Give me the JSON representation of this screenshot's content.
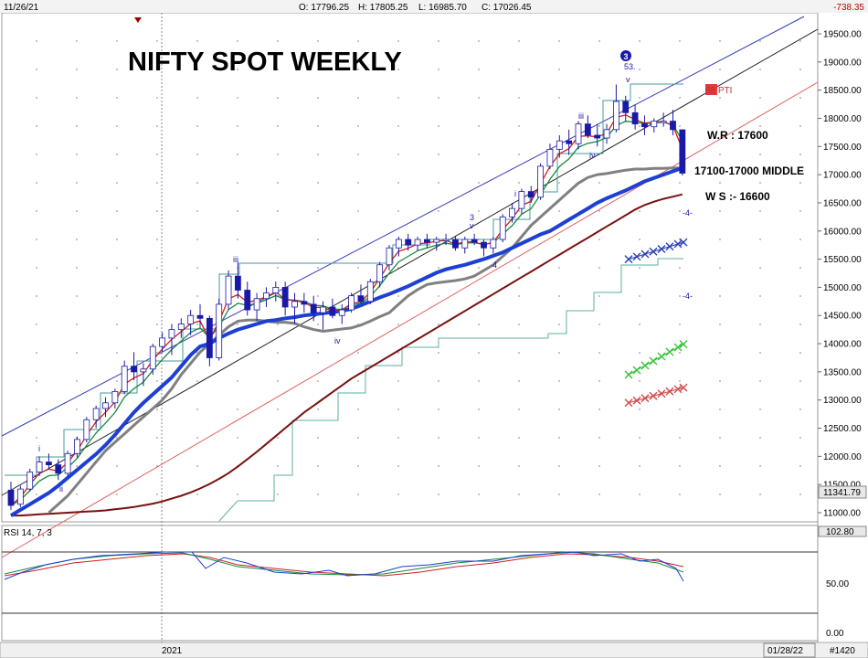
{
  "header": {
    "date": "11/26/21",
    "open": "O: 17796.25",
    "high": "H: 17805.25",
    "low": "L: 16985.70",
    "close": "C: 17026.45",
    "change": "-738.35"
  },
  "title": "NIFTY SPOT WEEKLY",
  "annotations": {
    "wr": "W.R : 17600",
    "middle": "17100-17000 MIDDLE",
    "ws": "W S :- 16600",
    "pti": "88 PTI",
    "wave_53": "53."
  },
  "wave_labels": {
    "i": "i",
    "ii": "ii",
    "iii": "iii",
    "iv": "iv",
    "v": "v",
    "three": "3",
    "four": "4",
    "minus4": "-4-",
    "circle3": "3"
  },
  "price_axis": {
    "ticks": [
      "19500.00",
      "19000.00",
      "18500.00",
      "18000.00",
      "17500.00",
      "17000.00",
      "16500.00",
      "16000.00",
      "15500.00",
      "15000.00",
      "14500.00",
      "14000.00",
      "13500.00",
      "13000.00",
      "12500.00",
      "12000.00",
      "11500.00",
      "11000.00"
    ],
    "last_price": "11341.79"
  },
  "rsi": {
    "label": "RSI 14, 7, 3",
    "ticks": [
      "102.80",
      "50.00",
      "0.00"
    ]
  },
  "time_axis": {
    "labels": [
      "2021",
      "01/28/22",
      "#1420"
    ]
  },
  "colors": {
    "up_candle": "#ffffff",
    "down_candle": "#1a1aa8",
    "ema_fast": "#d11e1e",
    "ema_mid": "#168a3c",
    "ma_blue": "#1d3fd4",
    "ma_gray": "#808080",
    "ma_maroon": "#7a1010"
  },
  "chart_data": {
    "type": "candlestick",
    "title": "NIFTY SPOT WEEKLY",
    "ylim": [
      10900,
      19700
    ],
    "ticks": [
      19500,
      19000,
      18500,
      18000,
      17500,
      17000,
      16500,
      16000,
      15500,
      15000,
      14500,
      14000,
      13500,
      13000,
      12500,
      12000,
      11500,
      11000
    ],
    "last_bar": {
      "date": "11/26/21",
      "open": 17796.25,
      "high": 17805.25,
      "low": 16985.7,
      "close": 17026.45,
      "change": -738.35
    },
    "candles": [
      {
        "o": 11400,
        "h": 11550,
        "l": 11050,
        "c": 11130
      },
      {
        "o": 11150,
        "h": 11480,
        "l": 11100,
        "c": 11420
      },
      {
        "o": 11420,
        "h": 11780,
        "l": 11380,
        "c": 11720
      },
      {
        "o": 11720,
        "h": 12000,
        "l": 11650,
        "c": 11900
      },
      {
        "o": 11900,
        "h": 12050,
        "l": 11780,
        "c": 11850
      },
      {
        "o": 11850,
        "h": 11950,
        "l": 11580,
        "c": 11700
      },
      {
        "o": 11700,
        "h": 12100,
        "l": 11650,
        "c": 12050
      },
      {
        "o": 12050,
        "h": 12350,
        "l": 11980,
        "c": 12300
      },
      {
        "o": 12300,
        "h": 12700,
        "l": 12250,
        "c": 12650
      },
      {
        "o": 12650,
        "h": 12900,
        "l": 12500,
        "c": 12850
      },
      {
        "o": 12850,
        "h": 13050,
        "l": 12700,
        "c": 12950
      },
      {
        "o": 12950,
        "h": 13200,
        "l": 12850,
        "c": 13150
      },
      {
        "o": 13150,
        "h": 13700,
        "l": 13100,
        "c": 13600
      },
      {
        "o": 13600,
        "h": 13850,
        "l": 13350,
        "c": 13500
      },
      {
        "o": 13500,
        "h": 13650,
        "l": 13250,
        "c": 13550
      },
      {
        "o": 13550,
        "h": 14000,
        "l": 13450,
        "c": 13950
      },
      {
        "o": 13950,
        "h": 14200,
        "l": 13850,
        "c": 14100
      },
      {
        "o": 14100,
        "h": 14350,
        "l": 13800,
        "c": 14250
      },
      {
        "o": 14250,
        "h": 14450,
        "l": 14100,
        "c": 14350
      },
      {
        "o": 14350,
        "h": 14600,
        "l": 14150,
        "c": 14500
      },
      {
        "o": 14500,
        "h": 14700,
        "l": 14300,
        "c": 14450
      },
      {
        "o": 14450,
        "h": 14500,
        "l": 13600,
        "c": 13750
      },
      {
        "o": 13750,
        "h": 14800,
        "l": 13700,
        "c": 14700
      },
      {
        "o": 14700,
        "h": 15300,
        "l": 14600,
        "c": 15200
      },
      {
        "o": 15200,
        "h": 15450,
        "l": 14800,
        "c": 14950
      },
      {
        "o": 14950,
        "h": 15100,
        "l": 14500,
        "c": 14600
      },
      {
        "o": 14600,
        "h": 14900,
        "l": 14400,
        "c": 14800
      },
      {
        "o": 14800,
        "h": 15000,
        "l": 14650,
        "c": 14900
      },
      {
        "o": 14900,
        "h": 15100,
        "l": 14750,
        "c": 15000
      },
      {
        "o": 15000,
        "h": 15100,
        "l": 14500,
        "c": 14650
      },
      {
        "o": 14650,
        "h": 14900,
        "l": 14350,
        "c": 14750
      },
      {
        "o": 14750,
        "h": 14900,
        "l": 14550,
        "c": 14700
      },
      {
        "o": 14700,
        "h": 14850,
        "l": 14400,
        "c": 14550
      },
      {
        "o": 14550,
        "h": 14750,
        "l": 14250,
        "c": 14650
      },
      {
        "o": 14650,
        "h": 14800,
        "l": 14450,
        "c": 14500
      },
      {
        "o": 14500,
        "h": 14700,
        "l": 14350,
        "c": 14600
      },
      {
        "o": 14600,
        "h": 14900,
        "l": 14550,
        "c": 14850
      },
      {
        "o": 14850,
        "h": 15050,
        "l": 14700,
        "c": 14750
      },
      {
        "o": 14750,
        "h": 15150,
        "l": 14700,
        "c": 15100
      },
      {
        "o": 15100,
        "h": 15450,
        "l": 15000,
        "c": 15400
      },
      {
        "o": 15400,
        "h": 15750,
        "l": 15300,
        "c": 15700
      },
      {
        "o": 15700,
        "h": 15900,
        "l": 15550,
        "c": 15850
      },
      {
        "o": 15850,
        "h": 15950,
        "l": 15650,
        "c": 15750
      },
      {
        "o": 15750,
        "h": 15900,
        "l": 15650,
        "c": 15850
      },
      {
        "o": 15850,
        "h": 15950,
        "l": 15700,
        "c": 15800
      },
      {
        "o": 15800,
        "h": 15900,
        "l": 15650,
        "c": 15850
      },
      {
        "o": 15850,
        "h": 15950,
        "l": 15750,
        "c": 15850
      },
      {
        "o": 15850,
        "h": 15900,
        "l": 15650,
        "c": 15700
      },
      {
        "o": 15700,
        "h": 15900,
        "l": 15600,
        "c": 15850
      },
      {
        "o": 15850,
        "h": 15950,
        "l": 15750,
        "c": 15800
      },
      {
        "o": 15800,
        "h": 15850,
        "l": 15550,
        "c": 15700
      },
      {
        "o": 15700,
        "h": 15900,
        "l": 15600,
        "c": 15850
      },
      {
        "o": 15850,
        "h": 16300,
        "l": 15800,
        "c": 16250
      },
      {
        "o": 16250,
        "h": 16500,
        "l": 16150,
        "c": 16400
      },
      {
        "o": 16400,
        "h": 16750,
        "l": 16300,
        "c": 16700
      },
      {
        "o": 16700,
        "h": 16800,
        "l": 16500,
        "c": 16600
      },
      {
        "o": 16600,
        "h": 17200,
        "l": 16550,
        "c": 17150
      },
      {
        "o": 17150,
        "h": 17550,
        "l": 17100,
        "c": 17450
      },
      {
        "o": 17450,
        "h": 17700,
        "l": 17300,
        "c": 17600
      },
      {
        "o": 17600,
        "h": 17800,
        "l": 17350,
        "c": 17550
      },
      {
        "o": 17550,
        "h": 17950,
        "l": 17450,
        "c": 17900
      },
      {
        "o": 17900,
        "h": 18050,
        "l": 17650,
        "c": 17700
      },
      {
        "o": 17700,
        "h": 17900,
        "l": 17500,
        "c": 17650
      },
      {
        "o": 17650,
        "h": 17900,
        "l": 17550,
        "c": 17800
      },
      {
        "o": 17800,
        "h": 18600,
        "l": 17750,
        "c": 18300
      },
      {
        "o": 18300,
        "h": 18400,
        "l": 17950,
        "c": 18100
      },
      {
        "o": 18100,
        "h": 18250,
        "l": 17800,
        "c": 17900
      },
      {
        "o": 17900,
        "h": 18050,
        "l": 17700,
        "c": 17850
      },
      {
        "o": 17850,
        "h": 18000,
        "l": 17750,
        "c": 17950
      },
      {
        "o": 17950,
        "h": 18100,
        "l": 17850,
        "c": 17950
      },
      {
        "o": 17950,
        "h": 18150,
        "l": 17700,
        "c": 17800
      },
      {
        "o": 17796.25,
        "h": 17805.25,
        "l": 16985.7,
        "c": 17026.45
      }
    ],
    "ma_blue": [
      10950,
      11050,
      11150,
      11250,
      11350,
      11480,
      11620,
      11760,
      11900,
      12040,
      12200,
      12380,
      12580,
      12780,
      12950,
      13100,
      13250,
      13400,
      13600,
      13800,
      13950,
      14000,
      14100,
      14180,
      14250,
      14300,
      14350,
      14400,
      14420,
      14450,
      14470,
      14500,
      14520,
      14540,
      14560,
      14580,
      14620,
      14680,
      14750,
      14820,
      14880,
      14950,
      15020,
      15100,
      15180,
      15260,
      15320,
      15360,
      15400,
      15450,
      15500,
      15560,
      15620,
      15700,
      15780,
      15860,
      15940,
      16000,
      16100,
      16200,
      16300,
      16400,
      16500,
      16580,
      16650,
      16720,
      16800,
      16880,
      16940,
      17000,
      17060,
      17120
    ],
    "ma_gray": [
      null,
      null,
      null,
      null,
      11000,
      11150,
      11300,
      11500,
      11700,
      11900,
      12100,
      12250,
      12400,
      12550,
      12700,
      12850,
      13000,
      13200,
      13450,
      13650,
      13850,
      14000,
      14150,
      14300,
      14400,
      14420,
      14420,
      14400,
      14380,
      14380,
      14360,
      14300,
      14250,
      14220,
      14240,
      14260,
      14280,
      14330,
      14400,
      14480,
      14550,
      14700,
      14850,
      14960,
      15050,
      15080,
      15100,
      15120,
      15150,
      15200,
      15300,
      15400,
      15550,
      15700,
      15900,
      16100,
      16250,
      16400,
      16550,
      16700,
      16850,
      16950,
      17000,
      17020,
      17050,
      17080,
      17100,
      17100,
      17110,
      17110,
      17120,
      17120
    ],
    "ma_maroon": [
      10950,
      10950,
      10960,
      10970,
      10980,
      10990,
      11000,
      11010,
      11020,
      11030,
      11040,
      11060,
      11080,
      11100,
      11130,
      11160,
      11200,
      11250,
      11300,
      11360,
      11430,
      11510,
      11600,
      11700,
      11820,
      11950,
      12080,
      12220,
      12360,
      12500,
      12640,
      12780,
      12900,
      13020,
      13140,
      13260,
      13380,
      13480,
      13580,
      13680,
      13780,
      13880,
      13980,
      14080,
      14180,
      14280,
      14380,
      14480,
      14580,
      14680,
      14780,
      14880,
      14980,
      15080,
      15180,
      15280,
      15380,
      15480,
      15580,
      15680,
      15780,
      15880,
      15980,
      16080,
      16180,
      16280,
      16380,
      16460,
      16520,
      16570,
      16610,
      16650
    ],
    "rsi_ticks": [
      102.8,
      50.0,
      0.0
    ]
  }
}
